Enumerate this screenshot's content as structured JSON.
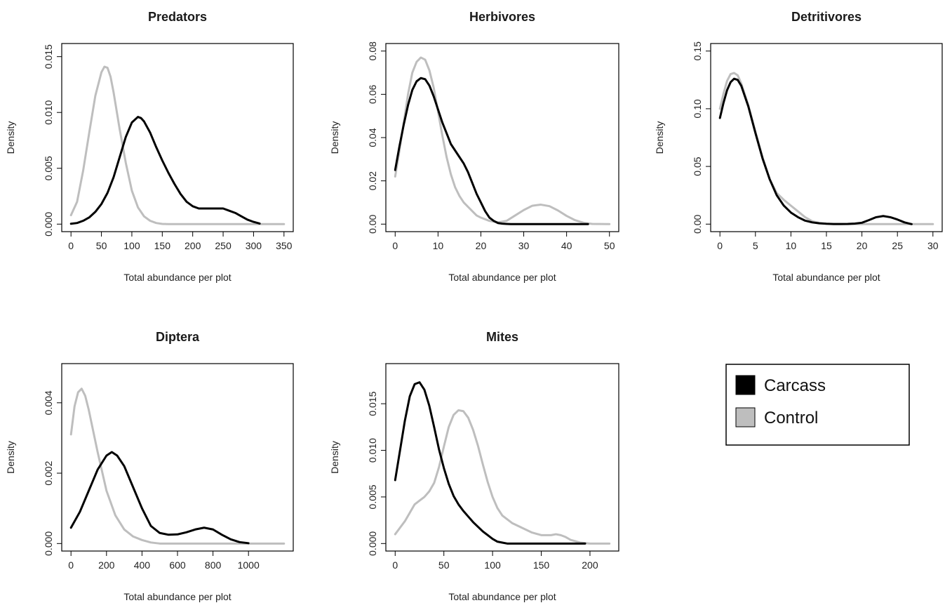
{
  "chart_data": [
    {
      "type": "line",
      "title": "Predators",
      "xlabel": "Total abundance per plot",
      "ylabel": "Density",
      "xlim": [
        0,
        350
      ],
      "ylim": [
        0,
        0.0155
      ],
      "xticks": [
        0,
        50,
        100,
        150,
        200,
        250,
        300,
        350
      ],
      "yticks": [
        "0.000",
        "0.005",
        "0.010",
        "0.015"
      ],
      "series": [
        {
          "name": "Carcass",
          "color": "#000000",
          "x": [
            0,
            10,
            20,
            30,
            40,
            50,
            60,
            70,
            80,
            90,
            100,
            110,
            115,
            120,
            130,
            140,
            150,
            160,
            170,
            180,
            190,
            200,
            210,
            220,
            230,
            240,
            250,
            260,
            270,
            280,
            290,
            300,
            310
          ],
          "y": [
            3e-05,
            0.0001,
            0.0003,
            0.0006,
            0.0011,
            0.0018,
            0.0028,
            0.0042,
            0.006,
            0.0078,
            0.0091,
            0.0096,
            0.0095,
            0.0092,
            0.0082,
            0.0069,
            0.0057,
            0.0046,
            0.0036,
            0.0027,
            0.002,
            0.0016,
            0.0014,
            0.0014,
            0.0014,
            0.0014,
            0.0014,
            0.0012,
            0.001,
            0.0007,
            0.0004,
            0.0002,
            5e-05
          ]
        },
        {
          "name": "Control",
          "color": "#bebebe",
          "x": [
            0,
            10,
            20,
            30,
            40,
            50,
            55,
            60,
            65,
            70,
            80,
            90,
            100,
            110,
            120,
            130,
            140,
            150,
            160,
            350
          ],
          "y": [
            0.0008,
            0.002,
            0.0048,
            0.0082,
            0.0115,
            0.0136,
            0.0141,
            0.014,
            0.0132,
            0.0118,
            0.0085,
            0.0055,
            0.003,
            0.0015,
            0.0007,
            0.0003,
            0.0001,
            2e-05,
            0,
            0
          ]
        }
      ]
    },
    {
      "type": "line",
      "title": "Herbivores",
      "xlabel": "Total abundance per plot",
      "ylabel": "Density",
      "xlim": [
        0,
        50
      ],
      "ylim": [
        0,
        0.08
      ],
      "xticks": [
        0,
        10,
        20,
        30,
        40,
        50
      ],
      "yticks": [
        "0.00",
        "0.02",
        "0.04",
        "0.06",
        "0.08"
      ],
      "series": [
        {
          "name": "Carcass",
          "color": "#000000",
          "x": [
            0,
            1,
            2,
            3,
            4,
            5,
            6,
            7,
            8,
            9,
            10,
            11,
            12,
            13,
            14,
            15,
            16,
            17,
            18,
            19,
            20,
            21,
            22,
            23,
            24,
            25,
            26,
            27,
            28,
            30,
            35,
            40,
            45
          ],
          "y": [
            0.025,
            0.036,
            0.046,
            0.055,
            0.062,
            0.066,
            0.0675,
            0.067,
            0.064,
            0.059,
            0.053,
            0.047,
            0.042,
            0.037,
            0.034,
            0.031,
            0.028,
            0.024,
            0.019,
            0.014,
            0.01,
            0.006,
            0.003,
            0.0015,
            0.0005,
            0.0002,
            0.0001,
            0,
            0,
            0,
            0,
            0,
            0
          ]
        },
        {
          "name": "Control",
          "color": "#bebebe",
          "x": [
            0,
            1,
            2,
            3,
            4,
            5,
            6,
            7,
            8,
            9,
            10,
            11,
            12,
            13,
            14,
            15,
            16,
            17,
            18,
            19,
            20,
            22,
            24,
            26,
            28,
            30,
            32,
            34,
            36,
            38,
            40,
            42,
            44,
            46,
            50
          ],
          "y": [
            0.022,
            0.034,
            0.047,
            0.06,
            0.07,
            0.075,
            0.077,
            0.076,
            0.071,
            0.063,
            0.052,
            0.041,
            0.031,
            0.023,
            0.017,
            0.013,
            0.01,
            0.008,
            0.006,
            0.004,
            0.003,
            0.0015,
            0.0008,
            0.0015,
            0.004,
            0.0065,
            0.0085,
            0.009,
            0.0083,
            0.0063,
            0.0038,
            0.0018,
            0.0006,
            0.0001,
            0
          ]
        }
      ]
    },
    {
      "type": "line",
      "title": "Detritivores",
      "xlabel": "Total abundance per plot",
      "ylabel": "Density",
      "xlim": [
        0,
        30
      ],
      "ylim": [
        0,
        0.15
      ],
      "xticks": [
        0,
        5,
        10,
        15,
        20,
        25,
        30
      ],
      "yticks": [
        "0.00",
        "0.05",
        "0.10",
        "0.15"
      ],
      "series": [
        {
          "name": "Carcass",
          "color": "#000000",
          "x": [
            0,
            0.5,
            1,
            1.5,
            2,
            2.5,
            3,
            4,
            5,
            6,
            7,
            8,
            9,
            10,
            11,
            12,
            13,
            14,
            15,
            16,
            17,
            18,
            19,
            20,
            21,
            22,
            23,
            24,
            25,
            26,
            27
          ],
          "y": [
            0.092,
            0.105,
            0.116,
            0.123,
            0.126,
            0.125,
            0.12,
            0.102,
            0.079,
            0.057,
            0.039,
            0.025,
            0.016,
            0.01,
            0.006,
            0.003,
            0.0015,
            0.0007,
            0.0003,
            0.0001,
            0.0001,
            0.0002,
            0.0005,
            0.0012,
            0.0035,
            0.006,
            0.007,
            0.006,
            0.004,
            0.0015,
            0
          ]
        },
        {
          "name": "Control",
          "color": "#bebebe",
          "x": [
            0,
            0.5,
            1,
            1.5,
            2,
            2.5,
            3,
            4,
            5,
            6,
            7,
            8,
            9,
            10,
            11,
            12,
            13,
            14,
            15,
            16,
            20,
            25,
            30
          ],
          "y": [
            0.1,
            0.113,
            0.124,
            0.13,
            0.131,
            0.129,
            0.122,
            0.103,
            0.08,
            0.058,
            0.039,
            0.027,
            0.021,
            0.016,
            0.011,
            0.006,
            0.0025,
            0.001,
            0.0003,
            0,
            0,
            0,
            0
          ]
        }
      ]
    },
    {
      "type": "line",
      "title": "Diptera",
      "xlabel": "Total abundance per plot",
      "ylabel": "Density",
      "xlim": [
        0,
        1200
      ],
      "ylim": [
        0,
        0.0049
      ],
      "xticks": [
        0,
        200,
        400,
        600,
        800,
        1000
      ],
      "yticks": [
        "0.000",
        "0.002",
        "0.004"
      ],
      "series": [
        {
          "name": "Carcass",
          "color": "#000000",
          "x": [
            0,
            50,
            100,
            150,
            200,
            230,
            260,
            300,
            350,
            400,
            450,
            500,
            550,
            600,
            650,
            700,
            750,
            800,
            850,
            900,
            950,
            1000
          ],
          "y": [
            0.00045,
            0.0009,
            0.0015,
            0.0021,
            0.0025,
            0.0026,
            0.0025,
            0.0022,
            0.0016,
            0.001,
            0.0005,
            0.0003,
            0.00025,
            0.00026,
            0.00032,
            0.0004,
            0.00045,
            0.0004,
            0.00025,
            0.00012,
            4e-05,
            1e-05
          ]
        },
        {
          "name": "Control",
          "color": "#bebebe",
          "x": [
            0,
            20,
            40,
            60,
            80,
            100,
            150,
            200,
            250,
            300,
            350,
            400,
            450,
            500,
            600,
            1200
          ],
          "y": [
            0.0031,
            0.0039,
            0.0043,
            0.0044,
            0.0042,
            0.0038,
            0.0026,
            0.0015,
            0.0008,
            0.0004,
            0.0002,
            0.0001,
            3e-05,
            0,
            0,
            0
          ]
        }
      ]
    },
    {
      "type": "line",
      "title": "Mites",
      "xlabel": "Total abundance per plot",
      "ylabel": "Density",
      "xlim": [
        0,
        220
      ],
      "ylim": [
        0,
        0.0185
      ],
      "xticks": [
        0,
        50,
        100,
        150,
        200
      ],
      "yticks": [
        "0.000",
        "0.005",
        "0.010",
        "0.015"
      ],
      "series": [
        {
          "name": "Carcass",
          "color": "#000000",
          "x": [
            0,
            5,
            10,
            15,
            20,
            25,
            30,
            35,
            40,
            45,
            50,
            55,
            60,
            65,
            70,
            75,
            80,
            85,
            90,
            95,
            100,
            105,
            110,
            115,
            120,
            140,
            160,
            180,
            195
          ],
          "y": [
            0.0068,
            0.01,
            0.0132,
            0.0158,
            0.0171,
            0.0173,
            0.0165,
            0.0148,
            0.0125,
            0.0101,
            0.0081,
            0.0064,
            0.0051,
            0.0042,
            0.0035,
            0.0029,
            0.0023,
            0.0018,
            0.0013,
            0.0009,
            0.0005,
            0.0002,
            0.0001,
            0,
            0,
            0,
            0,
            0,
            0
          ]
        },
        {
          "name": "Control",
          "color": "#bebebe",
          "x": [
            0,
            5,
            10,
            15,
            20,
            25,
            30,
            35,
            40,
            45,
            50,
            55,
            60,
            65,
            70,
            75,
            80,
            85,
            90,
            95,
            100,
            105,
            110,
            120,
            130,
            140,
            150,
            160,
            165,
            170,
            175,
            180,
            190,
            200,
            220
          ],
          "y": [
            0.001,
            0.0017,
            0.0024,
            0.0033,
            0.0042,
            0.0046,
            0.005,
            0.0056,
            0.0065,
            0.0082,
            0.0104,
            0.0125,
            0.0138,
            0.0143,
            0.0142,
            0.0135,
            0.0122,
            0.0105,
            0.0085,
            0.0066,
            0.005,
            0.0038,
            0.003,
            0.0022,
            0.0017,
            0.0012,
            0.0009,
            0.0009,
            0.001,
            0.0009,
            0.0007,
            0.0004,
            0.0001,
            0,
            0
          ]
        }
      ]
    }
  ],
  "legend": {
    "placement": "bottom-right",
    "entries": [
      {
        "label": "Carcass",
        "color": "#000000"
      },
      {
        "label": "Control",
        "color": "#bebebe"
      }
    ]
  }
}
